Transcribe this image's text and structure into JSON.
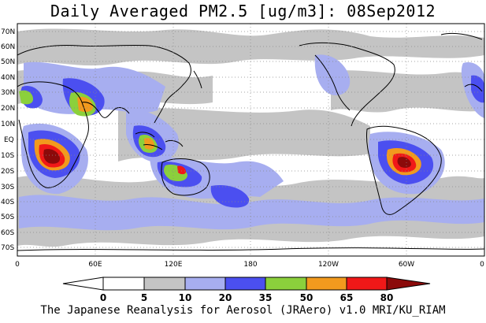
{
  "title": "Daily Averaged PM2.5 [ug/m3]: 08Sep2012",
  "credit": "The Japanese Reanalysis for Aerosol (JRAero) v1.0 MRI/KU_RIAM",
  "lat_labels": [
    "70N",
    "60N",
    "50N",
    "40N",
    "30N",
    "20N",
    "10N",
    "EQ",
    "10S",
    "20S",
    "30S",
    "40S",
    "50S",
    "60S",
    "70S"
  ],
  "lon_labels": [
    "0",
    "60E",
    "120E",
    "180",
    "120W",
    "60W",
    "0"
  ],
  "colorbar": {
    "levels": [
      "0",
      "5",
      "10",
      "20",
      "35",
      "50",
      "65",
      "80"
    ],
    "colors": [
      "#ffffff",
      "#c4c4c4",
      "#a7aef0",
      "#4b4ff0",
      "#8bd03c",
      "#f29a1e",
      "#f01818",
      "#8b0a0a"
    ]
  }
}
